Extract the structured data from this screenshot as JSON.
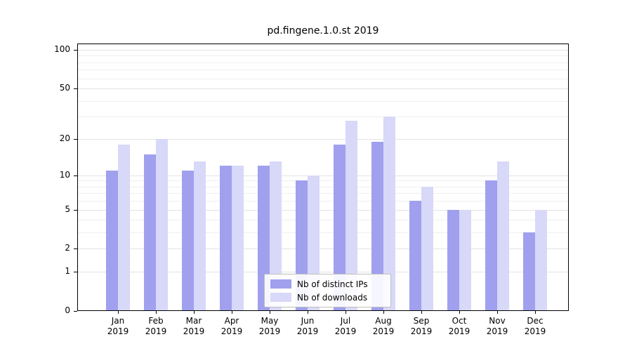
{
  "title": "pd.fingene.1.0.st 2019",
  "colors": {
    "ips_bar": "#a0a0ef",
    "downloads_bar": "#d8d8f8",
    "grid_major": "#e3e3e3",
    "grid_minor": "#efefef",
    "spine": "#000000",
    "legend_border": "#bfbfbf"
  },
  "y_axis": {
    "tick_labels": [
      "0",
      "1",
      "2",
      "5",
      "10",
      "20",
      "50",
      "100"
    ]
  },
  "legend": {
    "items": [
      {
        "label": "Nb of distinct IPs",
        "color": "#a0a0ef"
      },
      {
        "label": "Nb of downloads",
        "color": "#d8d8f8"
      }
    ]
  },
  "chart_data": {
    "type": "bar",
    "title": "pd.fingene.1.0.st 2019",
    "categories": [
      "Jan 2019",
      "Feb 2019",
      "Mar 2019",
      "Apr 2019",
      "May 2019",
      "Jun 2019",
      "Jul 2019",
      "Aug 2019",
      "Sep 2019",
      "Oct 2019",
      "Nov 2019",
      "Dec 2019"
    ],
    "series": [
      {
        "name": "Nb of distinct IPs",
        "color": "#a0a0ef",
        "values": [
          11,
          15,
          11,
          12,
          12,
          9,
          18,
          19,
          6,
          5,
          9,
          3
        ]
      },
      {
        "name": "Nb of downloads",
        "color": "#d8d8f8",
        "values": [
          18,
          20,
          13,
          12,
          13,
          10,
          28,
          30,
          8,
          5,
          13,
          5
        ]
      }
    ],
    "xlabel": "",
    "ylabel": "",
    "y_scale": "log1p",
    "y_ticks": [
      0,
      1,
      2,
      5,
      10,
      20,
      50,
      100
    ],
    "y_minor_gridlines": [
      3,
      4,
      6,
      7,
      8,
      9,
      30,
      40,
      60,
      70,
      80,
      90
    ],
    "ylim": [
      0,
      110
    ],
    "grid": true,
    "legend_position": "bottom-center-inside"
  }
}
